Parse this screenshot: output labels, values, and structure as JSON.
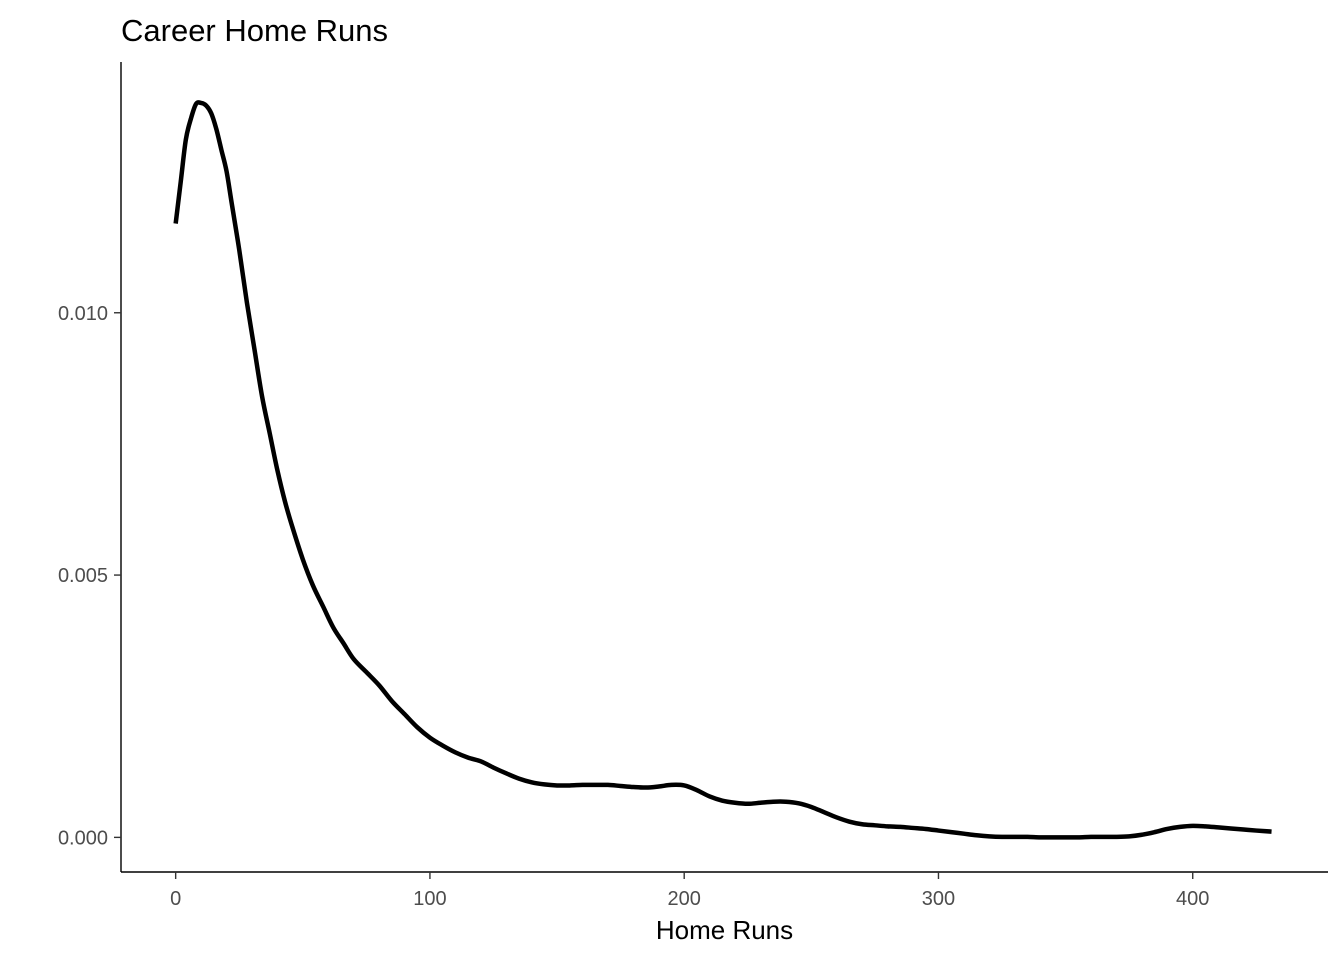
{
  "chart_data": {
    "type": "line",
    "title": "Career Home Runs",
    "xlabel": "Home Runs",
    "ylabel": "",
    "xlim": [
      -21.5,
      453.2
    ],
    "ylim": [
      -0.00066,
      0.01478
    ],
    "xticks": [
      0,
      100,
      200,
      300,
      400
    ],
    "xtick_labels": [
      "0",
      "100",
      "200",
      "300",
      "400"
    ],
    "yticks": [
      0.0,
      0.005,
      0.01
    ],
    "ytick_labels": [
      "0.000",
      "0.005",
      "0.010"
    ],
    "grid": false,
    "legend": "none",
    "series": [
      {
        "color": "#000000",
        "x": [
          0,
          2,
          4,
          6,
          8,
          10,
          12,
          14,
          16,
          18,
          20,
          22,
          25,
          28,
          31,
          34,
          37,
          40,
          43,
          46,
          50,
          54,
          58,
          62,
          66,
          70,
          75,
          80,
          85,
          90,
          95,
          100,
          105,
          110,
          115,
          120,
          125,
          130,
          135,
          140,
          145,
          150,
          155,
          160,
          165,
          170,
          175,
          180,
          185,
          190,
          195,
          200,
          205,
          210,
          215,
          220,
          225,
          230,
          235,
          240,
          245,
          250,
          255,
          260,
          265,
          270,
          275,
          280,
          285,
          290,
          295,
          300,
          305,
          310,
          315,
          320,
          325,
          330,
          335,
          340,
          345,
          350,
          355,
          360,
          365,
          370,
          375,
          380,
          385,
          390,
          395,
          400,
          405,
          410,
          415,
          420,
          425,
          431
        ],
        "y": [
          0.0117,
          0.0125,
          0.0133,
          0.0137,
          0.01398,
          0.014,
          0.01395,
          0.0138,
          0.0135,
          0.0131,
          0.0127,
          0.0121,
          0.0112,
          0.0102,
          0.0093,
          0.0084,
          0.0077,
          0.007,
          0.0064,
          0.0059,
          0.0053,
          0.0048,
          0.0044,
          0.004,
          0.0037,
          0.0034,
          0.00315,
          0.0029,
          0.0026,
          0.00235,
          0.0021,
          0.0019,
          0.00175,
          0.00162,
          0.00152,
          0.00145,
          0.00133,
          0.00122,
          0.00112,
          0.00105,
          0.00101,
          0.00099,
          0.00099,
          0.001,
          0.001,
          0.001,
          0.00098,
          0.00096,
          0.00095,
          0.00097,
          0.001,
          0.00099,
          0.0009,
          0.00078,
          0.0007,
          0.00066,
          0.00064,
          0.00066,
          0.00068,
          0.00068,
          0.00065,
          0.00058,
          0.00048,
          0.00038,
          0.0003,
          0.00025,
          0.00023,
          0.00021,
          0.0002,
          0.00018,
          0.00016,
          0.00013,
          0.0001,
          7e-05,
          4e-05,
          2e-05,
          1e-05,
          1e-05,
          1e-05,
          0.0,
          0.0,
          0.0,
          0.0,
          1e-05,
          1e-05,
          1e-05,
          2e-05,
          5e-05,
          0.0001,
          0.00016,
          0.0002,
          0.00022,
          0.00021,
          0.00019,
          0.00017,
          0.00015,
          0.00013,
          0.00011
        ]
      }
    ]
  }
}
